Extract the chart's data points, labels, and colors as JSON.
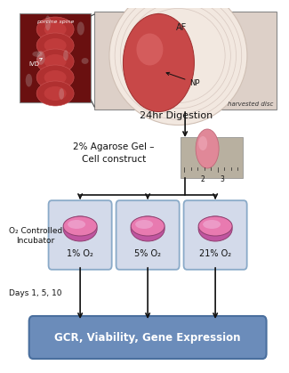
{
  "bg_color": "#ffffff",
  "arrow_color": "#111111",
  "step1_label": "24hr Digestion",
  "step2_label": "2% Agarose Gel –\nCell construct",
  "incubator_label": "O₂ Controlled\nIncubator",
  "days_label": "Days 1, 5, 10",
  "final_label": "GCR, Viability, Gene Expression",
  "o2_labels": [
    "1% O₂",
    "5% O₂",
    "21% O₂"
  ],
  "final_box_fill": "#6b8cba",
  "final_box_edge": "#4a6f9e",
  "incubator_box_fill": "#d3daea",
  "incubator_box_edge": "#8aaac8",
  "dish_top_color": "#e87ab0",
  "dish_rim_color": "#c055a0",
  "dish_highlight_color": "#f0b0d8",
  "spine_bg": "#7a1010",
  "disc_bg": "#e8d5cc",
  "af_label": "AF",
  "np_label": "NP",
  "spine_label": "porcine spine",
  "ivd_label": "IVD",
  "disc_label": "harvested disc",
  "ruler_bg": "#b8b0a0",
  "gel_bead_color": "#d07090"
}
